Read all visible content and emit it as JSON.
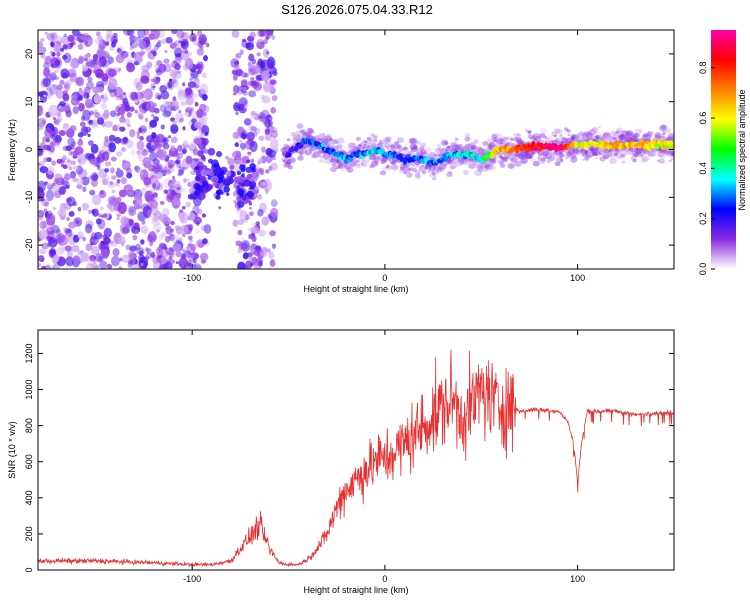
{
  "title": "S126.2026.075.04.33.R12",
  "chart_data": [
    {
      "type": "heatmap",
      "name": "spectrogram",
      "xlabel": "Height of straight line (km)",
      "ylabel": "Frequency (Hz)",
      "xlim": [
        -180,
        150
      ],
      "ylim": [
        -25,
        25
      ],
      "x_ticks": [
        -100,
        0,
        100
      ],
      "y_ticks": [
        -20,
        -10,
        0,
        10,
        20
      ],
      "ridge": {
        "x": [
          -50,
          -45,
          -40,
          -35,
          -30,
          -25,
          -20,
          -15,
          -10,
          -5,
          0,
          5,
          10,
          15,
          20,
          25,
          30,
          35,
          40,
          45,
          50,
          55,
          60,
          65,
          70,
          80,
          90,
          100,
          110,
          120,
          130,
          140,
          150
        ],
        "frequency": [
          -1,
          1,
          2,
          1,
          0,
          -1,
          -2,
          -1,
          -1,
          0,
          -1,
          -1,
          -2,
          -2,
          -2,
          -3,
          -2,
          -1,
          -1,
          -1,
          -2,
          -1,
          0,
          0,
          0.5,
          0.5,
          0.5,
          1,
          1,
          1,
          1,
          1,
          1
        ],
        "amplitude": [
          0.15,
          0.2,
          0.25,
          0.25,
          0.3,
          0.3,
          0.3,
          0.25,
          0.3,
          0.35,
          0.3,
          0.25,
          0.25,
          0.25,
          0.3,
          0.3,
          0.3,
          0.3,
          0.35,
          0.35,
          0.4,
          0.5,
          0.7,
          0.7,
          0.75,
          0.85,
          0.95,
          0.6,
          0.6,
          0.65,
          0.65,
          0.6,
          0.6
        ]
      },
      "colorbar": {
        "label": "Normalized spectral amplitude",
        "range": [
          0,
          0.95
        ],
        "ticks": [
          "0.0",
          "0.2",
          "0.4",
          "0.6",
          "0.8"
        ],
        "colors": [
          "#ffffff",
          "#8a2be2",
          "#0000ff",
          "#00ffff",
          "#00ff00",
          "#ffff00",
          "#ff8000",
          "#ff0000",
          "#ff00aa"
        ]
      }
    },
    {
      "type": "line",
      "name": "snr",
      "xlabel": "Height of straight line (km)",
      "ylabel": "SNR (10 * v/v)",
      "xlim": [
        -180,
        150
      ],
      "ylim": [
        0,
        1330
      ],
      "x_ticks": [
        -100,
        0,
        100
      ],
      "y_ticks": [
        0,
        200,
        400,
        600,
        800,
        1000,
        1200
      ],
      "color": "#e83030",
      "series": [
        {
          "name": "SNR",
          "x": [
            -180,
            -150,
            -120,
            -100,
            -90,
            -80,
            -75,
            -70,
            -65,
            -60,
            -55,
            -50,
            -45,
            -40,
            -35,
            -30,
            -25,
            -20,
            -15,
            -10,
            -5,
            0,
            5,
            10,
            15,
            20,
            25,
            30,
            35,
            40,
            45,
            50,
            55,
            60,
            65,
            70,
            80,
            90,
            95,
            98,
            100,
            102,
            105,
            110,
            120,
            130,
            140,
            150
          ],
          "y": [
            50,
            50,
            40,
            30,
            30,
            50,
            120,
            180,
            250,
            120,
            40,
            30,
            30,
            60,
            120,
            200,
            350,
            450,
            500,
            550,
            600,
            620,
            650,
            700,
            750,
            800,
            850,
            900,
            950,
            850,
            900,
            1000,
            950,
            900,
            920,
            880,
            890,
            880,
            820,
            700,
            480,
            700,
            880,
            880,
            880,
            860,
            870,
            870
          ]
        }
      ]
    }
  ]
}
